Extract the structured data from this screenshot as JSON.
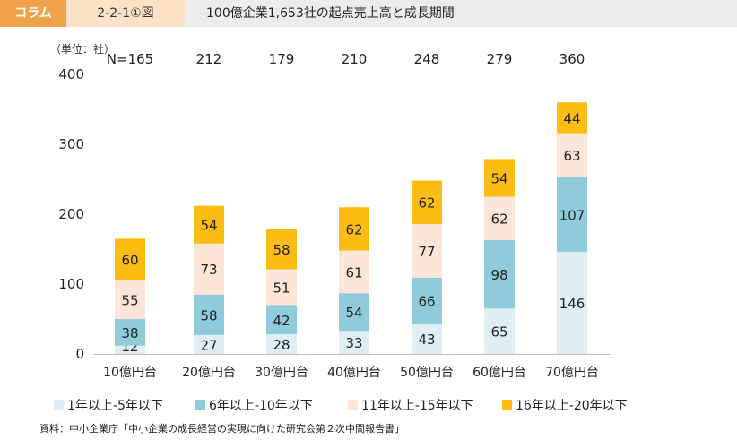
{
  "header": {
    "tag": "コラム",
    "figure_id": "2-2-1①図",
    "title": "100億企業1,653社の起点売上高と成長期間"
  },
  "unit_label": "（単位：社）",
  "source": "資料：中小企業庁「中小企業の成長経営の実現に向けた研究会第２次中間報告書」",
  "chart_data": {
    "type": "bar",
    "stacked": true,
    "categories": [
      "10億円台",
      "20億円台",
      "30億円台",
      "40億円台",
      "50億円台",
      "60億円台",
      "70億円台"
    ],
    "totals": [
      "N=165",
      "212",
      "179",
      "210",
      "248",
      "279",
      "360"
    ],
    "series": [
      {
        "name": "1年以上-5年以下",
        "color": "#deeef3",
        "values": [
          12,
          27,
          28,
          33,
          43,
          65,
          146
        ]
      },
      {
        "name": "6年以上-10年以下",
        "color": "#8fcbda",
        "values": [
          38,
          58,
          42,
          54,
          66,
          98,
          107
        ]
      },
      {
        "name": "11年以上-15年以下",
        "color": "#fbe5d6",
        "values": [
          55,
          73,
          51,
          61,
          77,
          62,
          63
        ]
      },
      {
        "name": "16年以上-20年以下",
        "color": "#fbbd12",
        "values": [
          60,
          54,
          58,
          62,
          62,
          54,
          44
        ]
      }
    ],
    "ylim": [
      0,
      400
    ],
    "yticks": [
      0,
      100,
      200,
      300,
      400
    ],
    "grid": false,
    "legend": "bottom"
  }
}
